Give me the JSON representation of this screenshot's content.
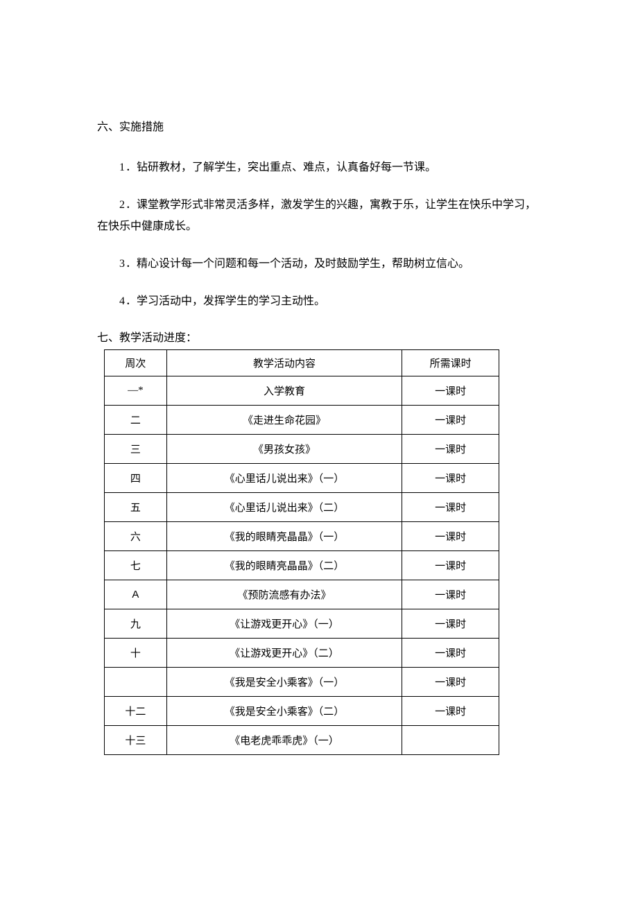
{
  "section6": {
    "heading": "六、实施措施",
    "items": [
      {
        "num": "1",
        "text": "．钻研教材，了解学生，突出重点、难点，认真备好每一节课。"
      },
      {
        "num": "2",
        "text": "．课堂教学形式非常灵活多样，激发学生的兴趣，寓教于乐，让学生在快乐中学习，在快乐中健康成长。"
      },
      {
        "num": "3",
        "text": "．精心设计每一个问题和每一个活动，及时鼓励学生，帮助树立信心。"
      },
      {
        "num": "4",
        "text": "．学习活动中，发挥学生的学习主动性。"
      }
    ]
  },
  "section7": {
    "heading": "七、教学活动进度：",
    "columns": [
      "周次",
      "教学活动内容",
      "所需课时"
    ],
    "rows": [
      {
        "week": "—*",
        "content": "入学教育",
        "hours": "一课时",
        "sans": false
      },
      {
        "week": "二",
        "content": "《走进生命花园》",
        "hours": "一课时",
        "sans": false
      },
      {
        "week": "三",
        "content": "《男孩女孩》",
        "hours": "一课时",
        "sans": false
      },
      {
        "week": "四",
        "content": "《心里话儿说出来》（一）",
        "hours": "一课时",
        "sans": false
      },
      {
        "week": "五",
        "content": "《心里话儿说出来》（二）",
        "hours": "一课时",
        "sans": false
      },
      {
        "week": "六",
        "content": "《我的眼睛亮晶晶》（一）",
        "hours": "一课时",
        "sans": false
      },
      {
        "week": "七",
        "content": "《我的眼睛亮晶晶》（二）",
        "hours": "一课时",
        "sans": false
      },
      {
        "week": "A",
        "content": "《预防流感有办法》",
        "hours": "一课时",
        "sans": true
      },
      {
        "week": "九",
        "content": "《让游戏更开心》（一）",
        "hours": "一课时",
        "sans": false
      },
      {
        "week": "十",
        "content": "《让游戏更开心》（二）",
        "hours": "一课时",
        "sans": false
      },
      {
        "week": "",
        "content": "《我是安全小乘客》（一）",
        "hours": "一课时",
        "sans": false
      },
      {
        "week": "十二",
        "content": "《我是安全小乘客》（二）",
        "hours": "一课时",
        "sans": false
      },
      {
        "week": "十三",
        "content": "《电老虎乖乖虎》（一）",
        "hours": "",
        "sans": false
      }
    ]
  }
}
